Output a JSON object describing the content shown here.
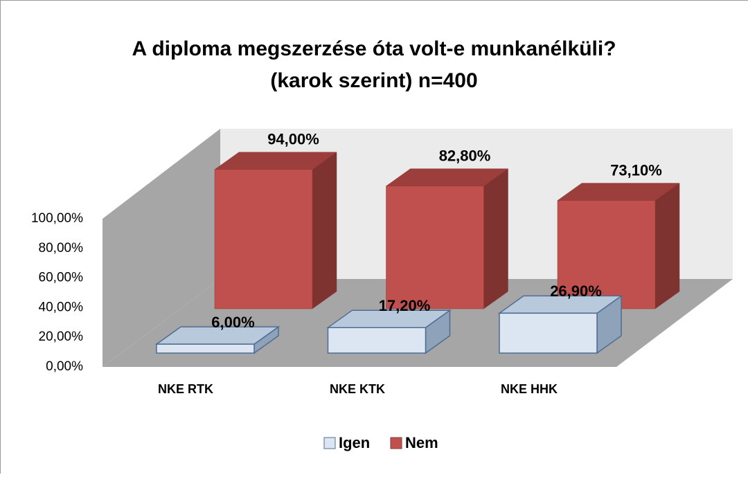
{
  "chart_data": {
    "type": "bar3d",
    "title": [
      "A diploma megszerzése óta volt-e munkanélküli?",
      "(karok szerint) n=400"
    ],
    "categories": [
      "NKE RTK",
      "NKE KTK",
      "NKE HHK"
    ],
    "series": [
      {
        "name": "Igen",
        "color": "#dce6f2",
        "values": [
          6,
          17.2,
          26.9
        ],
        "value_labels": [
          "6,00%",
          "17,20%",
          "26,90%"
        ]
      },
      {
        "name": "Nem",
        "color": "#c0504d",
        "values": [
          94,
          82.8,
          73.1
        ],
        "value_labels": [
          "94,00%",
          "82,80%",
          "73,10%"
        ]
      }
    ],
    "ylim": [
      0,
      100
    ],
    "yticks": [
      {
        "value": 0,
        "label": "0,00%"
      },
      {
        "value": 20,
        "label": "20,00%"
      },
      {
        "value": 40,
        "label": "40,00%"
      },
      {
        "value": 60,
        "label": "60,00%"
      },
      {
        "value": 80,
        "label": "80,00%"
      },
      {
        "value": 100,
        "label": "100,00%"
      }
    ],
    "legend": "bottom"
  }
}
